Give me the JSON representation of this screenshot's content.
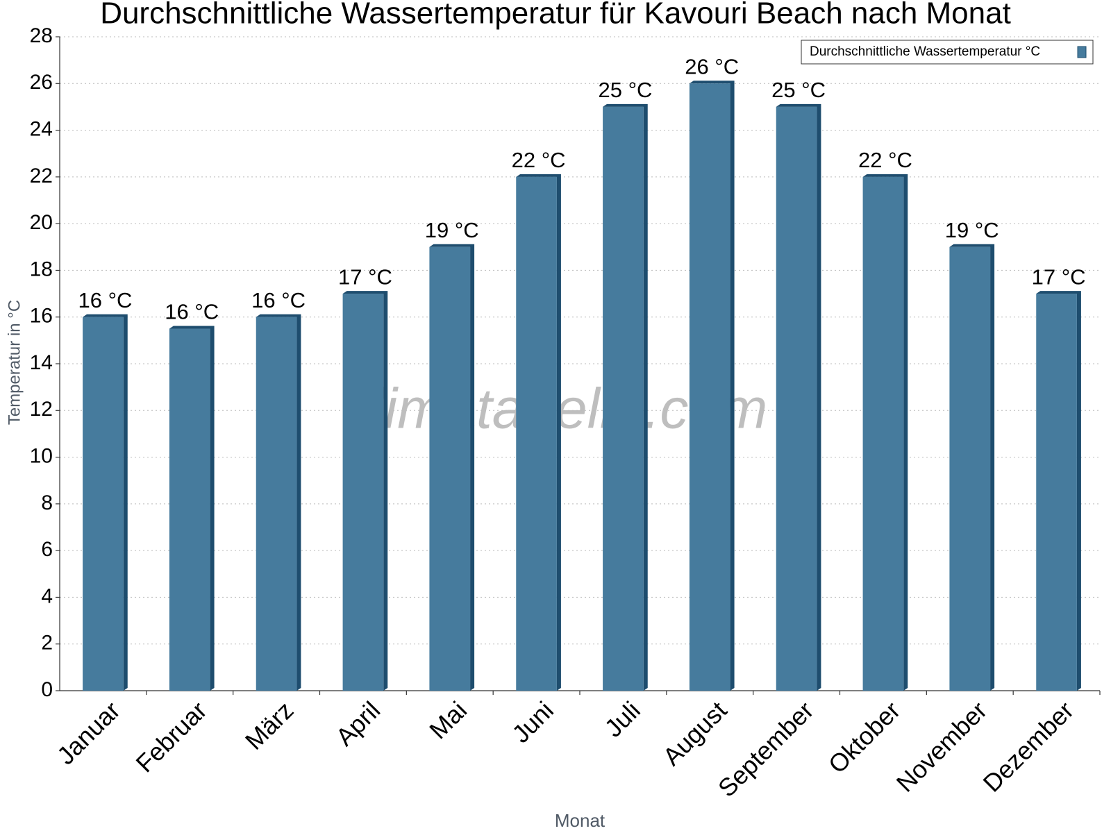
{
  "chart_data": {
    "type": "bar",
    "title": "Durchschnittliche Wassertemperatur für Kavouri Beach nach Monat",
    "x_label": "Monat",
    "y_label": "Temperatur in °C",
    "watermark": "klimatabelle.com",
    "categories": [
      "Januar",
      "Februar",
      "März",
      "April",
      "Mai",
      "Juni",
      "Juli",
      "August",
      "September",
      "Oktober",
      "November",
      "Dezember"
    ],
    "series": [
      {
        "name": "Durchschnittliche Wassertemperatur °C",
        "color": "#467b9d",
        "values": [
          16,
          15.5,
          16,
          17,
          19,
          22,
          25,
          26,
          25,
          22,
          19,
          17
        ],
        "value_labels": [
          "16 °C",
          "16 °C",
          "16 °C",
          "17 °C",
          "19 °C",
          "22 °C",
          "25 °C",
          "26 °C",
          "25 °C",
          "22 °C",
          "19 °C",
          "17 °C"
        ]
      }
    ],
    "ylim": [
      0,
      28
    ],
    "yticks": [
      0,
      2,
      4,
      6,
      8,
      10,
      12,
      14,
      16,
      18,
      20,
      22,
      24,
      26,
      28
    ],
    "grid": true,
    "legend": "top-right"
  }
}
